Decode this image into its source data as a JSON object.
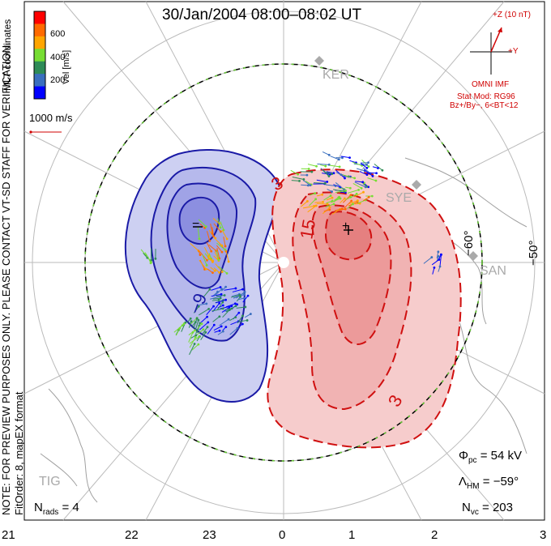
{
  "title": "30/Jan/2004 08:00–08:02 UT",
  "colorbar": {
    "label": "Vel [m/s]",
    "ticks": [
      "600",
      "400",
      "200"
    ],
    "colors": [
      "#ff0000",
      "#ff6a00",
      "#ffa500",
      "#77dd33",
      "#2e8b57",
      "#3a6fbf",
      "#0000ff"
    ]
  },
  "coord_label": "MLT coordinates",
  "scale_label": "1000 m/s",
  "imf": {
    "z_label": "+Z (10 nT)",
    "y_label": "+Y",
    "source": "OMNI IMF",
    "model": "Stat Mod: RG96",
    "condition": "Bz+/By−, 6<BT<12"
  },
  "notice": "NOTE: FOR PREVIEW PURPOSES ONLY. PLEASE CONTACT VT-SD STAFF FOR VERIFICATION.",
  "fit_info": "FitOrder: 8, mapEX format",
  "stations": [
    "KER",
    "SYE",
    "SAN",
    "TIG"
  ],
  "latitude_labels": [
    "−60°",
    "−50°"
  ],
  "contour_labels": [
    "−9",
    "3",
    "15",
    "3"
  ],
  "potential_extrema": {
    "min": "−",
    "max": "+"
  },
  "mlt_labels": [
    "21",
    "22",
    "23",
    "0",
    "1",
    "2",
    "3"
  ],
  "stats": {
    "phi_pc": "Φpc = 54 kV",
    "phi_pc_value": "= 54 kV",
    "lambda_hm_value": "= −59°",
    "n_vc_value": "= 203",
    "n_rads_value": "= 4"
  },
  "colors": {
    "negative_cell": "#1a1aa6",
    "positive_cell": "#d01010",
    "hm_boundary": "#66cc33",
    "coast": "#9a9a9a"
  }
}
